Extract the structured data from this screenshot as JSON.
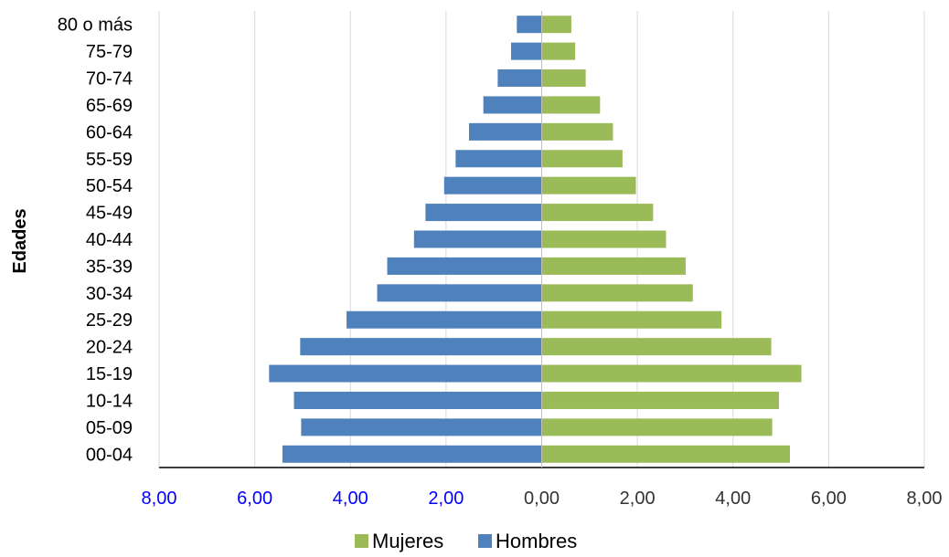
{
  "chart_data": {
    "type": "bar",
    "orientation": "horizontal",
    "ylabel": "Edades",
    "categories": [
      "80 o más",
      "75-79",
      "70-74",
      "65-69",
      "60-64",
      "55-59",
      "50-54",
      "45-49",
      "40-44",
      "35-39",
      "30-34",
      "25-29",
      "20-24",
      "15-19",
      "10-14",
      "05-09",
      "00-04"
    ],
    "series": [
      {
        "name": "Mujeres",
        "color": "#9BBB59",
        "values": [
          0.62,
          0.7,
          0.92,
          1.22,
          1.49,
          1.69,
          1.97,
          2.33,
          2.6,
          3.01,
          3.16,
          3.76,
          4.8,
          5.43,
          4.96,
          4.82,
          5.19
        ]
      },
      {
        "name": "Hombres",
        "color": "#4F81BD",
        "values": [
          -0.52,
          -0.64,
          -0.92,
          -1.22,
          -1.52,
          -1.8,
          -2.04,
          -2.43,
          -2.67,
          -3.23,
          -3.44,
          -4.08,
          -5.05,
          -5.7,
          -5.18,
          -5.03,
          -5.42
        ]
      }
    ],
    "xlim": [
      -8,
      8
    ],
    "xticks": [
      "8,00",
      "6,00",
      "4,00",
      "2,00",
      "0,00",
      "2,00",
      "4,00",
      "6,00",
      "8,00"
    ],
    "xtick_colors": [
      "#0000ff",
      "#0000ff",
      "#0000ff",
      "#0000ff",
      "#333333",
      "#333333",
      "#333333",
      "#333333",
      "#333333"
    ],
    "grid": "vertical",
    "legend_position": "bottom",
    "legend_order": [
      "Mujeres",
      "Hombres"
    ]
  }
}
